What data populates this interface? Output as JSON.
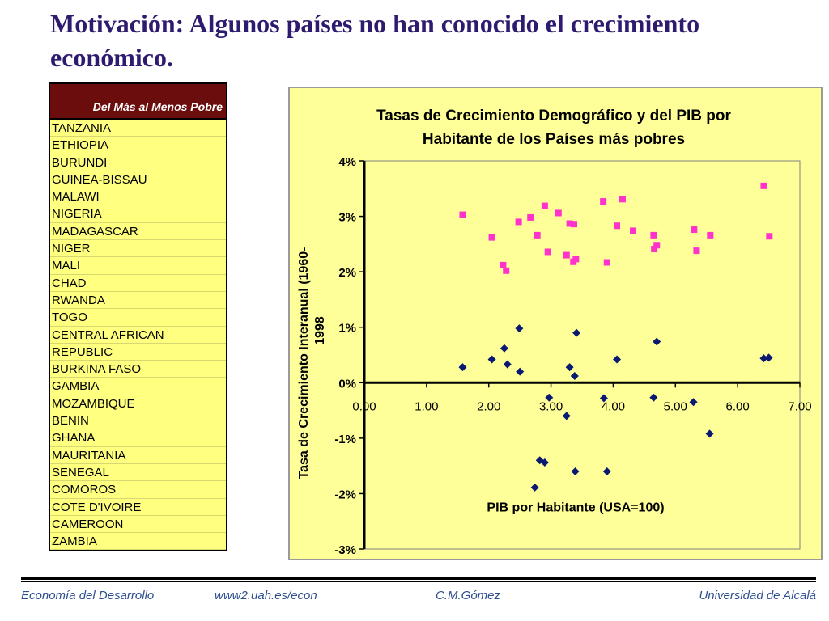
{
  "slide": {
    "title": "Motivación: Algunos países no han conocido el crecimiento económico."
  },
  "table": {
    "header": "Del Más al Menos Pobre",
    "rows": [
      "TANZANIA",
      "ETHIOPIA",
      "BURUNDI",
      "GUINEA-BISSAU",
      "MALAWI",
      "NIGERIA",
      "MADAGASCAR",
      "NIGER",
      "MALI",
      "CHAD",
      "RWANDA",
      "TOGO",
      "CENTRAL AFRICAN",
      "REPUBLIC",
      "BURKINA FASO",
      "GAMBIA",
      "MOZAMBIQUE",
      "BENIN",
      "GHANA",
      "MAURITANIA",
      "SENEGAL",
      "COMOROS",
      "COTE D'IVOIRE",
      "CAMEROON",
      "ZAMBIA"
    ]
  },
  "footer": {
    "left": "Economía del Desarrollo",
    "site": "www2.uah.es/econ",
    "author": "C.M.Gómez",
    "university": "Universidad de Alcalá"
  },
  "chart_data": {
    "type": "scatter",
    "title_lines": [
      "Tasas de Crecimiento Demográfico y del PIB por",
      "Habitante de los Países más pobres"
    ],
    "xlabel": "PIB por Habitante (USA=100)",
    "ylabel_lines": [
      "Tasa de Crecimiento Interanual (1960-",
      "1998"
    ],
    "xlim": [
      0,
      7
    ],
    "ylim": [
      -3,
      4
    ],
    "xticks": [
      "0.00",
      "1.00",
      "2.00",
      "3.00",
      "4.00",
      "5.00",
      "6.00",
      "7.00"
    ],
    "yticks": [
      "-3%",
      "-2%",
      "-1%",
      "0%",
      "1%",
      "2%",
      "3%",
      "4%"
    ],
    "grid": false,
    "colors": {
      "background": "#ffff99",
      "series_pink": "#ff33cc",
      "series_navy": "#0a1a73"
    },
    "series": [
      {
        "marker": "square",
        "color": "#ff33cc",
        "points": [
          [
            1.58,
            3.03
          ],
          [
            2.05,
            2.62
          ],
          [
            2.23,
            2.12
          ],
          [
            2.28,
            2.02
          ],
          [
            2.48,
            2.9
          ],
          [
            2.67,
            2.98
          ],
          [
            2.78,
            2.66
          ],
          [
            2.9,
            3.19
          ],
          [
            2.95,
            2.36
          ],
          [
            3.12,
            3.06
          ],
          [
            3.25,
            2.3
          ],
          [
            3.3,
            2.87
          ],
          [
            3.36,
            2.18
          ],
          [
            3.37,
            2.86
          ],
          [
            3.4,
            2.23
          ],
          [
            3.84,
            3.27
          ],
          [
            3.9,
            2.17
          ],
          [
            4.06,
            2.83
          ],
          [
            4.15,
            3.31
          ],
          [
            4.32,
            2.74
          ],
          [
            4.65,
            2.66
          ],
          [
            4.66,
            2.41
          ],
          [
            4.7,
            2.48
          ],
          [
            5.3,
            2.76
          ],
          [
            5.34,
            2.38
          ],
          [
            5.56,
            2.66
          ],
          [
            6.42,
            3.55
          ],
          [
            6.51,
            2.64
          ]
        ]
      },
      {
        "marker": "diamond",
        "color": "#0a1a73",
        "points": [
          [
            1.58,
            0.28
          ],
          [
            2.05,
            0.42
          ],
          [
            2.25,
            0.62
          ],
          [
            2.3,
            0.33
          ],
          [
            2.49,
            0.98
          ],
          [
            2.5,
            0.2
          ],
          [
            2.74,
            -1.89
          ],
          [
            2.82,
            -1.4
          ],
          [
            2.9,
            -1.44
          ],
          [
            2.97,
            -0.27
          ],
          [
            3.25,
            -0.6
          ],
          [
            3.3,
            0.28
          ],
          [
            3.38,
            0.12
          ],
          [
            3.39,
            -1.6
          ],
          [
            3.41,
            0.9
          ],
          [
            3.85,
            -0.28
          ],
          [
            3.9,
            -1.6
          ],
          [
            4.06,
            0.42
          ],
          [
            4.65,
            -0.27
          ],
          [
            4.7,
            0.74
          ],
          [
            5.29,
            -0.35
          ],
          [
            5.55,
            -0.92
          ],
          [
            6.42,
            0.44
          ],
          [
            6.5,
            0.45
          ]
        ]
      }
    ]
  }
}
